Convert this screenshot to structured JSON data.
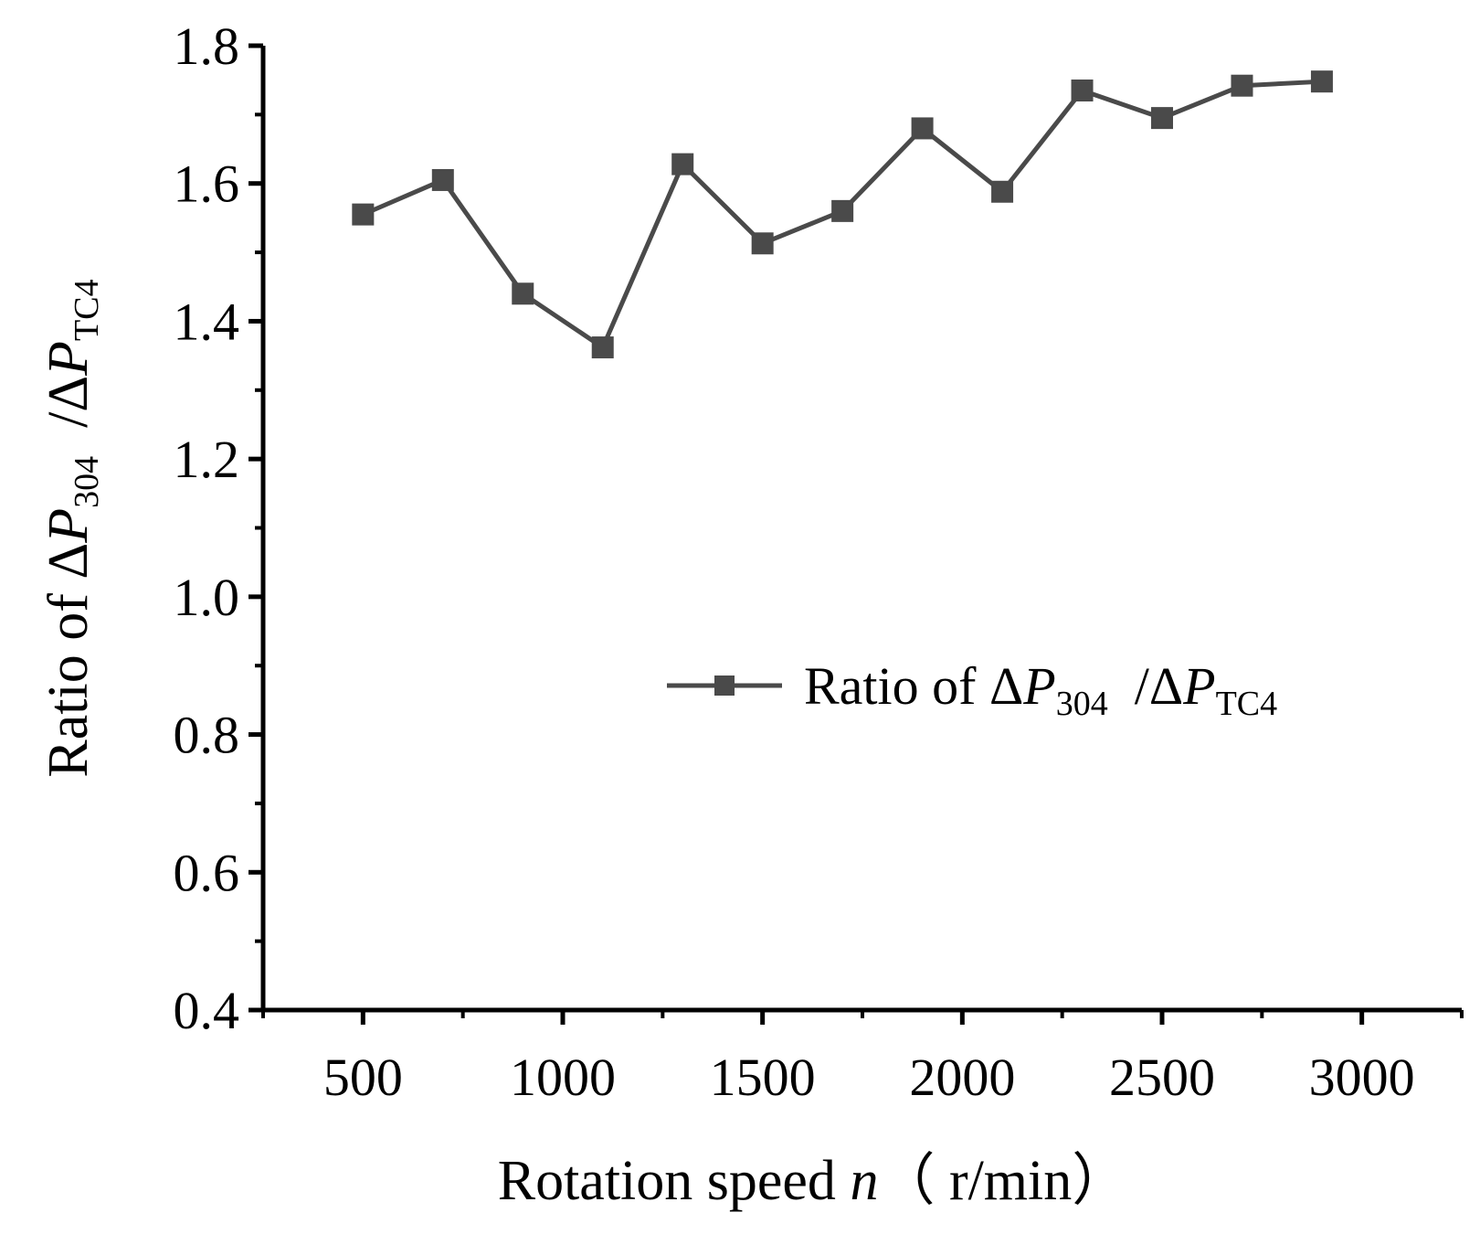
{
  "chart_data": {
    "type": "line",
    "title": "",
    "xlabel": {
      "main": "Rotation speed ",
      "var": "n",
      "unit": "（ r/min）"
    },
    "ylabel": {
      "main": "Ratio of Δ",
      "var1": "P",
      "sub1": "304",
      "sep": "  /Δ",
      "var2": "P",
      "sub2": "TC4"
    },
    "xlim": [
      250,
      3250
    ],
    "ylim": [
      0.4,
      1.8
    ],
    "x_major_ticks": [
      500,
      1000,
      1500,
      2000,
      2500,
      3000
    ],
    "x_tick_labels": [
      "500",
      "1000",
      "1500",
      "2000",
      "2500",
      "3000"
    ],
    "y_major_ticks": [
      0.4,
      0.6,
      0.8,
      1.0,
      1.2,
      1.4,
      1.6,
      1.8
    ],
    "y_tick_labels": [
      "0.4",
      "0.6",
      "0.8",
      "1.0",
      "1.2",
      "1.4",
      "1.6",
      "1.8"
    ],
    "series": [
      {
        "name": {
          "main": "Ratio of Δ",
          "var1": "P",
          "sub1": "304",
          "sep": "  /Δ",
          "var2": "P",
          "sub2": "TC4"
        },
        "color": "#4a4a4a",
        "marker": "square",
        "x": [
          500,
          700,
          900,
          1100,
          1300,
          1500,
          1700,
          1900,
          2100,
          2300,
          2500,
          2700,
          2900
        ],
        "y": [
          1.555,
          1.605,
          1.44,
          1.362,
          1.628,
          1.513,
          1.56,
          1.68,
          1.588,
          1.735,
          1.695,
          1.742,
          1.748
        ]
      }
    ],
    "legend_position": "center-right",
    "grid": false
  }
}
